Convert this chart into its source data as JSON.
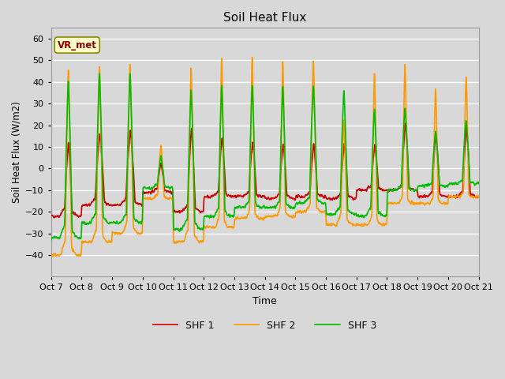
{
  "title": "Soil Heat Flux",
  "xlabel": "Time",
  "ylabel": "Soil Heat Flux (W/m2)",
  "ylim": [
    -50,
    65
  ],
  "colors": {
    "SHF 1": "#cc0000",
    "SHF 2": "#ff9900",
    "SHF 3": "#00bb00"
  },
  "legend_label": "VR_met",
  "background_color": "#d8d8d8",
  "plot_bg_color": "#d8d8d8",
  "grid_color": "#ffffff",
  "linewidth": 1.2,
  "xtick_labels": [
    "Oct 7",
    "Oct 8",
    "Oct 9",
    "Oct 10",
    "Oct 11",
    "Oct 12",
    "Oct 13",
    "Oct 14",
    "Oct 15",
    "Oct 16",
    "Oct 17",
    "Oct 18",
    "Oct 19",
    "Oct 20",
    "Oct 21"
  ]
}
